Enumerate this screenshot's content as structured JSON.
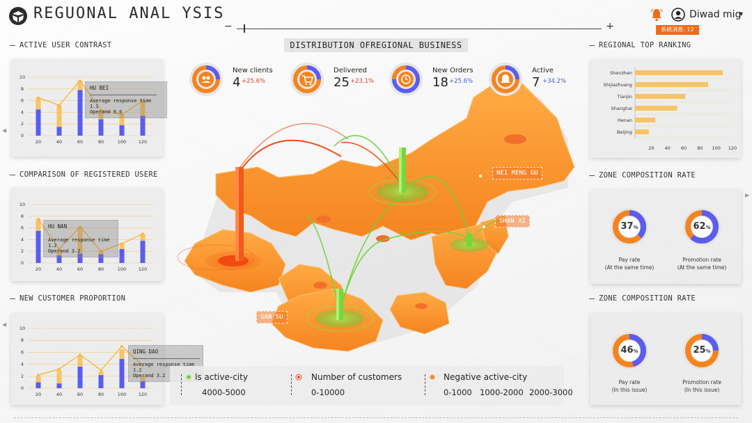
{
  "header": {
    "title": "REGUONAL ANAL YSIS",
    "slider_minus": "−",
    "slider_plus": "+",
    "user_name": "Diwad mig",
    "user_caret": "▾",
    "badge": "系统消息: 12",
    "accent": "#f26a1b"
  },
  "panels": {
    "active_user": {
      "title": "ACTIVE USER CONTRAST",
      "tooltip": {
        "name": "HU BEI",
        "line1": "Average response time 1.1",
        "line2": "Operand 9.6"
      }
    },
    "registered": {
      "title": "COMPARISON OF REGISTERED USERE",
      "tooltip": {
        "name": "HU NAN",
        "line1": "Average response time 1.2",
        "line2": "Operand 3.2"
      }
    },
    "new_customer": {
      "title": "NEW CUSTOMER PROPORTION",
      "tooltip": {
        "name": "QING DAO",
        "line1": "Average response time 1.2",
        "line2": "Operand 3.2"
      }
    },
    "ranking": {
      "title": "REGIONAL TOP RANKING"
    },
    "zone1": {
      "title": "ZONE COMPOSITION RATE",
      "left": {
        "value": "37",
        "unit": "%",
        "label": "Pay rate",
        "sub": "(At the same time)"
      },
      "right": {
        "value": "62",
        "unit": "%",
        "label": "Promotion rate",
        "sub": "(At the same time)"
      }
    },
    "zone2": {
      "title": "ZONE COMPOSITION RATE",
      "left": {
        "value": "46",
        "unit": "%",
        "label": "Pay rate",
        "sub": "(In this issue)"
      },
      "right": {
        "value": "25",
        "unit": "%",
        "label": "Promotion rate",
        "sub": "(In this issue)"
      }
    }
  },
  "map": {
    "title": "DISTRIBUTION OFREGIONAL BUSINESS",
    "kpis": [
      {
        "label": "New clients",
        "value": "4",
        "change": "+25.6%",
        "change_color": "#e0402a",
        "icon": "users-icon"
      },
      {
        "label": "Delivered",
        "value": "25",
        "change": "+23.1%",
        "change_color": "#e0402a",
        "icon": "cart-icon"
      },
      {
        "label": "New Orders",
        "value": "18",
        "change": "+25.6%",
        "change_color": "#4a5bd8",
        "icon": "clock-icon"
      },
      {
        "label": "Active",
        "value": "7",
        "change": "+34.2%",
        "change_color": "#4a5bd8",
        "icon": "bell-icon"
      }
    ],
    "labels": {
      "nei_meng_gu": "NEI MENG GU",
      "shan_xi": "SHAN XI",
      "gan_su": "GAN SU"
    }
  },
  "legend": {
    "active": {
      "label": "ls active-city",
      "range": "4000-5000"
    },
    "customers": {
      "label": "Number of customers",
      "range": "0-10000"
    },
    "negative": {
      "label": "Negative active-city",
      "r1": "0-1000",
      "r2": "1000-2000",
      "r3": "2000-3000"
    }
  },
  "chart_data": [
    {
      "type": "bar",
      "name": "active-user-contrast",
      "categories": [
        "20",
        "40",
        "60",
        "80",
        "100",
        "120"
      ],
      "ylim": [
        0,
        10
      ],
      "yticks": [
        "0",
        "2",
        "4",
        "6",
        "8",
        "10"
      ],
      "series": [
        {
          "values": [
            4.5,
            1.5,
            7.8,
            2.8,
            1.8,
            3.4
          ],
          "color": "#5b5cf0"
        },
        {
          "values": [
            2,
            3.7,
            1.6,
            1.6,
            1.8,
            2.6
          ],
          "color": "#f8c463"
        }
      ],
      "line": [
        6.5,
        5.2,
        9.4,
        4.4,
        3.6,
        6
      ]
    },
    {
      "type": "bar",
      "name": "registered-users",
      "categories": [
        "20",
        "40",
        "60",
        "80",
        "100",
        "120"
      ],
      "ylim": [
        0,
        10
      ],
      "yticks": [
        "0",
        "2",
        "4",
        "6",
        "8",
        "10"
      ],
      "series": [
        {
          "values": [
            5.5,
            1.3,
            1.6,
            1.5,
            2.4,
            3.8
          ],
          "color": "#5b5cf0"
        },
        {
          "values": [
            2,
            1,
            4.6,
            0.5,
            1,
            1.2
          ],
          "color": "#f8c463"
        }
      ],
      "line": [
        7.5,
        2.4,
        6.2,
        2,
        3.3,
        5
      ]
    },
    {
      "type": "bar",
      "name": "new-customer-proportion",
      "categories": [
        "20",
        "40",
        "60",
        "80",
        "100",
        "120"
      ],
      "ylim": [
        0,
        10
      ],
      "yticks": [
        "0",
        "2",
        "4",
        "6",
        "8",
        "10"
      ],
      "series": [
        {
          "values": [
            1,
            0.8,
            3.6,
            2.2,
            4.9,
            1.2
          ],
          "color": "#5b5cf0"
        },
        {
          "values": [
            1,
            2.2,
            1.8,
            0.6,
            1.6,
            0.8
          ],
          "color": "#f8c463"
        }
      ],
      "line": [
        2.2,
        3.2,
        5.6,
        3,
        7,
        3.8
      ]
    },
    {
      "type": "bar",
      "name": "regional-top-ranking",
      "orientation": "horizontal",
      "categories": [
        "Shenzhen",
        "Shijiazhuang",
        "Tianjin",
        "Shanghai",
        "Henan",
        "Beijing"
      ],
      "values": [
        108,
        90,
        62,
        52,
        25,
        17
      ],
      "xlim": [
        0,
        120
      ],
      "xticks": [
        "20",
        "40",
        "60",
        "80",
        "100",
        "120"
      ],
      "color": "#f8c463"
    }
  ]
}
